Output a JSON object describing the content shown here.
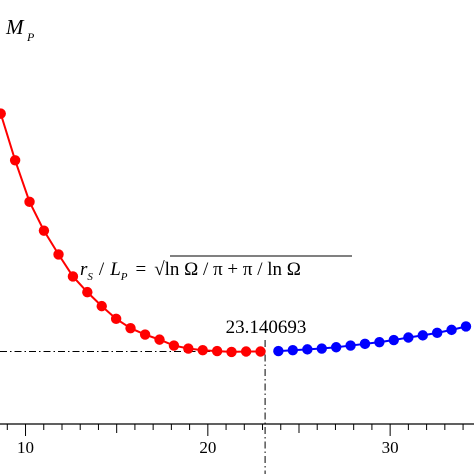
{
  "chart_data": {
    "type": "scatter",
    "ylabel": "M",
    "ylabel_sub": "P",
    "x_ticks": [
      10,
      20,
      30
    ],
    "xlim": [
      8.6,
      34.6
    ],
    "ylim": [
      0,
      1
    ],
    "grid": false,
    "formula": {
      "lhs_r": "r",
      "lhs_r_sub": "S",
      "lhs_slash": "/",
      "lhs_L": "L",
      "lhs_L_sub": "P",
      "equals": "=",
      "rhs": "ln Ω / π + π / ln Ω"
    },
    "annotation": {
      "label": "23.140693",
      "x": 23.140693
    },
    "minimum_line_y": 0.171,
    "series": [
      {
        "color": "#ff0000",
        "x": [
          8.64,
          9.43,
          10.22,
          11.01,
          11.81,
          12.6,
          13.39,
          14.18,
          14.97,
          15.76,
          16.56,
          17.35,
          18.14,
          18.93,
          19.72,
          20.51,
          21.3,
          22.1,
          22.89
        ],
        "y": [
          0.732,
          0.622,
          0.524,
          0.456,
          0.4,
          0.348,
          0.311,
          0.278,
          0.248,
          0.226,
          0.211,
          0.199,
          0.185,
          0.178,
          0.174,
          0.172,
          0.17,
          0.171,
          0.171
        ]
      },
      {
        "color": "#0000ff",
        "x": [
          23.87,
          24.66,
          25.46,
          26.25,
          27.04,
          27.83,
          28.62,
          29.41,
          30.2,
          31.0,
          31.79,
          32.58,
          33.37,
          34.16
        ],
        "y": [
          0.172,
          0.174,
          0.176,
          0.178,
          0.181,
          0.185,
          0.189,
          0.193,
          0.198,
          0.204,
          0.209,
          0.215,
          0.222,
          0.23
        ]
      }
    ]
  }
}
